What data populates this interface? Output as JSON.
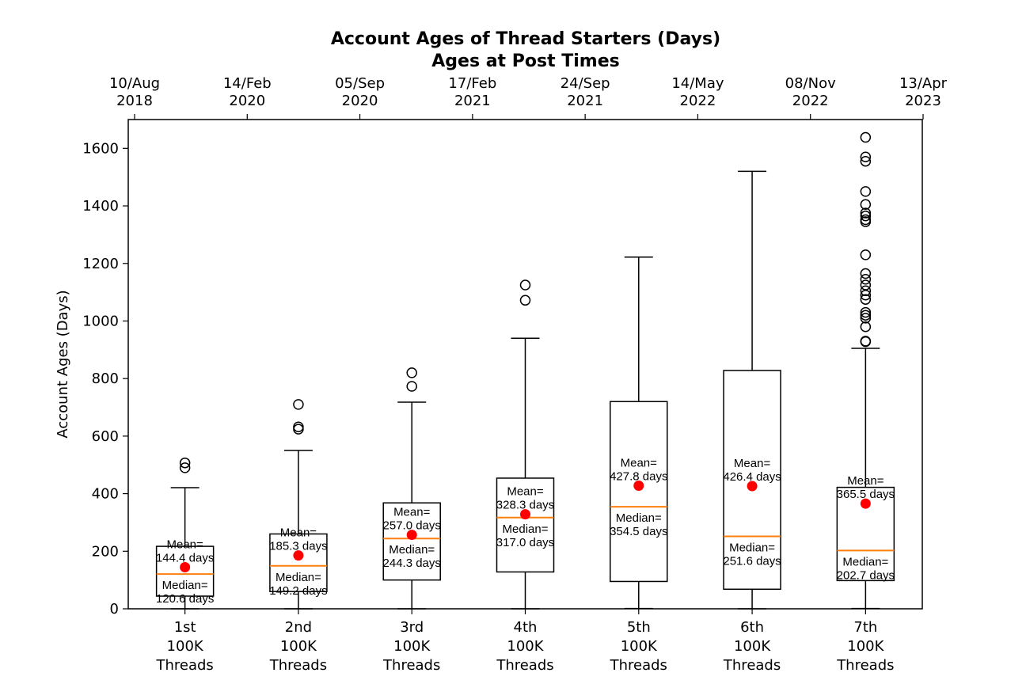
{
  "chart_data": {
    "type": "box",
    "title": "Account Ages of Thread Starters (Days)",
    "subtitle": "Ages at Post Times",
    "ylabel": "Account Ages (Days)",
    "ylim": [
      0,
      1700
    ],
    "yticks": [
      0,
      200,
      400,
      600,
      800,
      1000,
      1200,
      1400,
      1600
    ],
    "top_ticks": [
      {
        "line1": "10/Aug",
        "line2": "2018"
      },
      {
        "line1": "14/Feb",
        "line2": "2020"
      },
      {
        "line1": "05/Sep",
        "line2": "2020"
      },
      {
        "line1": "17/Feb",
        "line2": "2021"
      },
      {
        "line1": "24/Sep",
        "line2": "2021"
      },
      {
        "line1": "14/May",
        "line2": "2022"
      },
      {
        "line1": "08/Nov",
        "line2": "2022"
      },
      {
        "line1": "13/Apr",
        "line2": "2023"
      }
    ],
    "mean_label": "Mean=",
    "median_label": "Median=",
    "series": [
      {
        "label": [
          "1st",
          "100K",
          "Threads"
        ],
        "whislo": 0,
        "q1": 44,
        "median": 120.6,
        "q3": 217,
        "whishi": 421,
        "mean": 144.4,
        "mean_text": "144.4 days",
        "median_text": "120.6 days",
        "ann_pos": "inside",
        "outliers": [
          490,
          507
        ]
      },
      {
        "label": [
          "2nd",
          "100K",
          "Threads"
        ],
        "whislo": 0,
        "q1": 60,
        "median": 149.2,
        "q3": 260,
        "whishi": 550,
        "mean": 185.3,
        "mean_text": "185.3 days",
        "median_text": "149.2 days",
        "ann_pos": "inside",
        "outliers": [
          624,
          632,
          710
        ]
      },
      {
        "label": [
          "3rd",
          "100K",
          "Threads"
        ],
        "whislo": 0,
        "q1": 100,
        "median": 244.3,
        "q3": 368,
        "whishi": 718,
        "mean": 257.0,
        "mean_text": "257.0 days",
        "median_text": "244.3 days",
        "ann_pos": "inside",
        "outliers": [
          773,
          820
        ]
      },
      {
        "label": [
          "4th",
          "100K",
          "Threads"
        ],
        "whislo": 0,
        "q1": 128,
        "median": 317.0,
        "q3": 454,
        "whishi": 940,
        "mean": 328.3,
        "mean_text": "328.3 days",
        "median_text": "317.0 days",
        "ann_pos": "inside",
        "outliers": [
          1072,
          1125
        ]
      },
      {
        "label": [
          "5th",
          "100K",
          "Threads"
        ],
        "whislo": 1,
        "q1": 95,
        "median": 354.5,
        "q3": 720,
        "whishi": 1222,
        "mean": 427.8,
        "mean_text": "427.8 days",
        "median_text": "354.5 days",
        "ann_pos": "inside",
        "outliers": []
      },
      {
        "label": [
          "6th",
          "100K",
          "Threads"
        ],
        "whislo": 0,
        "q1": 68,
        "median": 251.6,
        "q3": 828,
        "whishi": 1520,
        "mean": 426.4,
        "mean_text": "426.4 days",
        "median_text": "251.6 days",
        "ann_pos": "inside",
        "outliers": []
      },
      {
        "label": [
          "7th",
          "100K",
          "Threads"
        ],
        "whislo": 1,
        "q1": 98,
        "median": 202.7,
        "q3": 422,
        "whishi": 905,
        "mean": 365.5,
        "mean_text": "365.5 days",
        "median_text": "202.7 days",
        "ann_pos": "inside",
        "outliers": [
          928,
          930,
          980,
          1010,
          1020,
          1030,
          1075,
          1090,
          1105,
          1125,
          1145,
          1165,
          1230,
          1345,
          1352,
          1365,
          1375,
          1405,
          1450,
          1555,
          1570,
          1638
        ]
      }
    ]
  }
}
